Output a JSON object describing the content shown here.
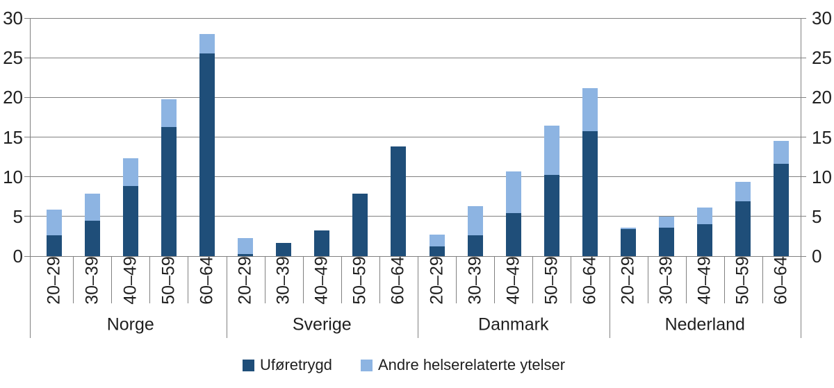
{
  "chart_data": {
    "type": "bar",
    "stacked": true,
    "title": "",
    "xlabel": "",
    "ylabel": "",
    "ylim": [
      0,
      30
    ],
    "yticks": [
      0,
      5,
      10,
      15,
      20,
      25,
      30
    ],
    "grid": true,
    "dual_y_axis": true,
    "legend_position": "bottom",
    "groups": [
      "Norge",
      "Sverige",
      "Danmark",
      "Nederland"
    ],
    "age_categories": [
      "20–29",
      "30–39",
      "40–49",
      "50–59",
      "60–64"
    ],
    "series": [
      {
        "name": "Uføretrygd",
        "color": "#1f4e79",
        "values": [
          2.6,
          4.5,
          8.8,
          16.3,
          25.5,
          0.3,
          1.7,
          3.2,
          7.9,
          13.8,
          1.2,
          2.6,
          5.4,
          10.2,
          15.7,
          3.4,
          3.6,
          4.0,
          6.9,
          11.6
        ]
      },
      {
        "name": "Andre helserelaterte ytelser",
        "color": "#8db4e2",
        "values": [
          3.3,
          3.4,
          3.5,
          3.5,
          2.5,
          2.0,
          0,
          0,
          0,
          0,
          1.5,
          3.7,
          5.3,
          6.2,
          5.5,
          0.2,
          1.4,
          2.1,
          2.5,
          2.9
        ]
      }
    ]
  },
  "legend": {
    "items": [
      {
        "label": "Uføretrygd",
        "color": "#1f4e79"
      },
      {
        "label": "Andre helserelaterte ytelser",
        "color": "#8db4e2"
      }
    ]
  },
  "style": {
    "background": "#ffffff",
    "grid_color": "#808080",
    "text_color": "#1f1f1f"
  }
}
